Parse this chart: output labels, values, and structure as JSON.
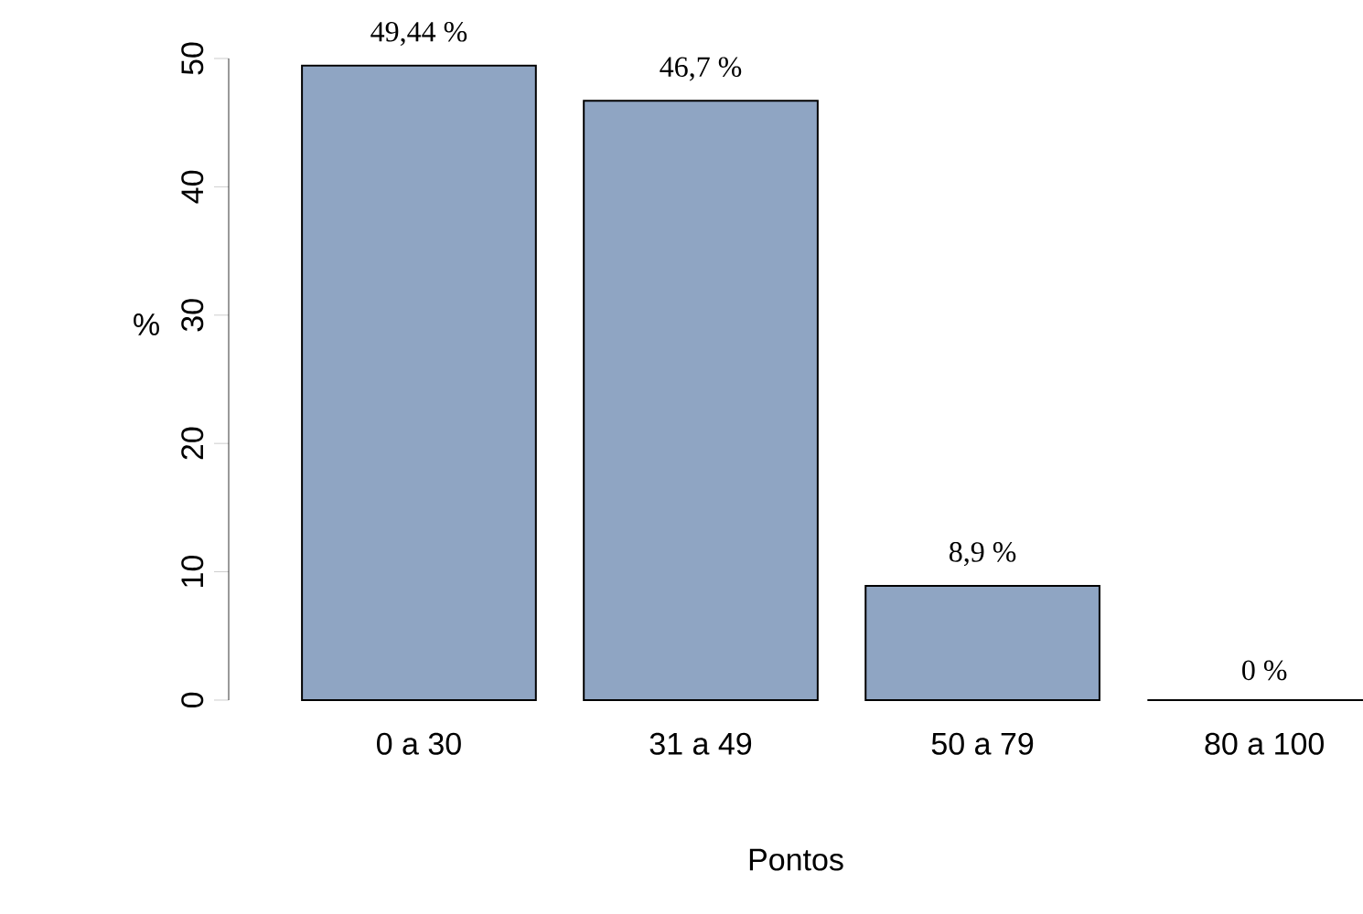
{
  "chart_data": {
    "type": "bar",
    "xlabel": "Pontos",
    "ylabel": "%",
    "categories": [
      "0 a 30",
      "31 a 49",
      "50 a 79",
      "80 a 100"
    ],
    "values": [
      49.44,
      46.7,
      8.9,
      0
    ],
    "value_labels": [
      "49,44 %",
      "46,7 %",
      "8,9 %",
      "0 %"
    ],
    "color": "#8fa5c3",
    "ylim": [
      0,
      50
    ],
    "yticks": [
      0,
      10,
      20,
      30,
      40,
      50
    ]
  }
}
